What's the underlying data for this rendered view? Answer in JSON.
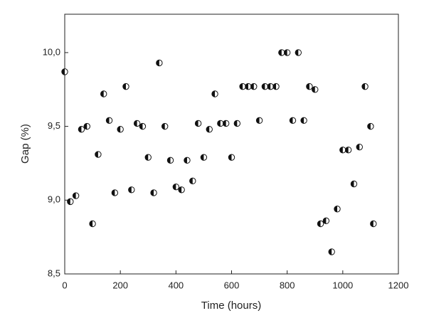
{
  "chart_data": {
    "type": "scatter",
    "xlabel": "Time (hours)",
    "ylabel": "Gap (%)",
    "x": [
      0,
      20,
      40,
      60,
      80,
      100,
      120,
      140,
      160,
      180,
      200,
      220,
      240,
      260,
      280,
      300,
      320,
      340,
      360,
      380,
      400,
      420,
      440,
      460,
      480,
      500,
      520,
      540,
      560,
      580,
      600,
      620,
      640,
      660,
      680,
      700,
      720,
      740,
      760,
      780,
      800,
      820,
      840,
      860,
      880,
      900,
      920,
      940,
      960,
      980,
      1000,
      1020,
      1040,
      1060,
      1080,
      1100,
      1110
    ],
    "values": [
      9.87,
      8.99,
      9.03,
      9.48,
      9.5,
      8.84,
      9.31,
      9.72,
      9.54,
      9.05,
      9.48,
      9.77,
      9.07,
      9.52,
      9.5,
      9.29,
      9.05,
      9.93,
      9.5,
      9.27,
      9.09,
      9.07,
      9.27,
      9.13,
      9.52,
      9.29,
      9.48,
      9.72,
      9.52,
      9.52,
      9.29,
      9.52,
      9.77,
      9.77,
      9.77,
      9.54,
      9.77,
      9.77,
      9.77,
      10.0,
      10.0,
      9.54,
      10.0,
      9.54,
      9.77,
      9.75,
      8.84,
      8.86,
      8.65,
      8.94,
      9.34,
      9.34,
      9.11,
      9.36,
      9.77,
      9.5,
      8.84
    ],
    "color": "#111111",
    "xlim": [
      0,
      1200
    ],
    "xticks": [
      0,
      200,
      400,
      600,
      800,
      1000,
      1200
    ],
    "ylim": [
      8.5,
      10.26
    ],
    "yticks": [
      {
        "value": 8.5,
        "label": "8,5"
      },
      {
        "value": 9.0,
        "label": "9,0"
      },
      {
        "value": 9.5,
        "label": "9,5"
      },
      {
        "value": 10.0,
        "label": "10,0"
      }
    ]
  }
}
